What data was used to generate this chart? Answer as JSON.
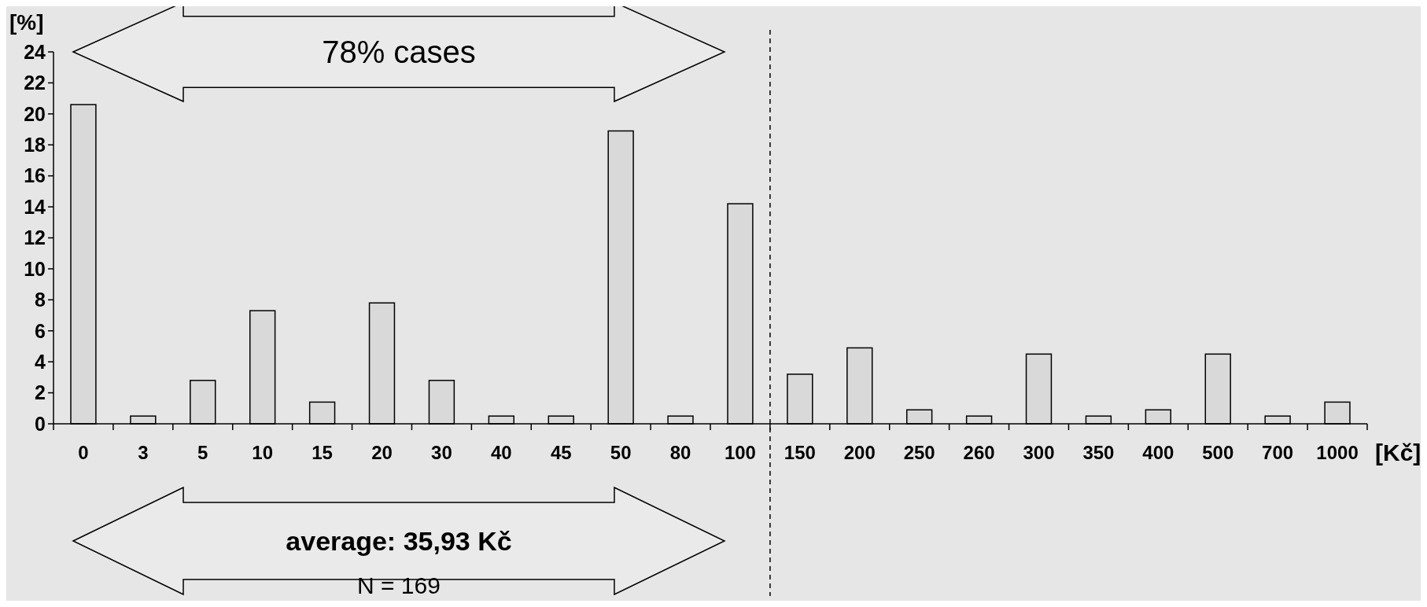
{
  "chart_data": {
    "type": "bar",
    "ylabel": "[%]",
    "xlabel": "[Kč]",
    "categories": [
      "0",
      "3",
      "5",
      "10",
      "15",
      "20",
      "30",
      "40",
      "45",
      "50",
      "80",
      "100",
      "150",
      "200",
      "250",
      "260",
      "300",
      "350",
      "400",
      "500",
      "700",
      "1000"
    ],
    "values": [
      20.6,
      0.5,
      2.8,
      7.3,
      1.4,
      7.8,
      2.8,
      0.5,
      0.5,
      18.9,
      0.5,
      14.2,
      3.2,
      4.9,
      0.9,
      0.5,
      4.5,
      0.5,
      0.9,
      4.5,
      0.5,
      1.4
    ],
    "color": "#d9d9d9",
    "ylim": [
      0,
      24
    ],
    "yticks": [
      0,
      2,
      4,
      6,
      8,
      10,
      12,
      14,
      16,
      18,
      20,
      22,
      24
    ],
    "annotations": [
      "78% cases",
      "average: 35,93 Kč",
      "N = 169"
    ]
  }
}
